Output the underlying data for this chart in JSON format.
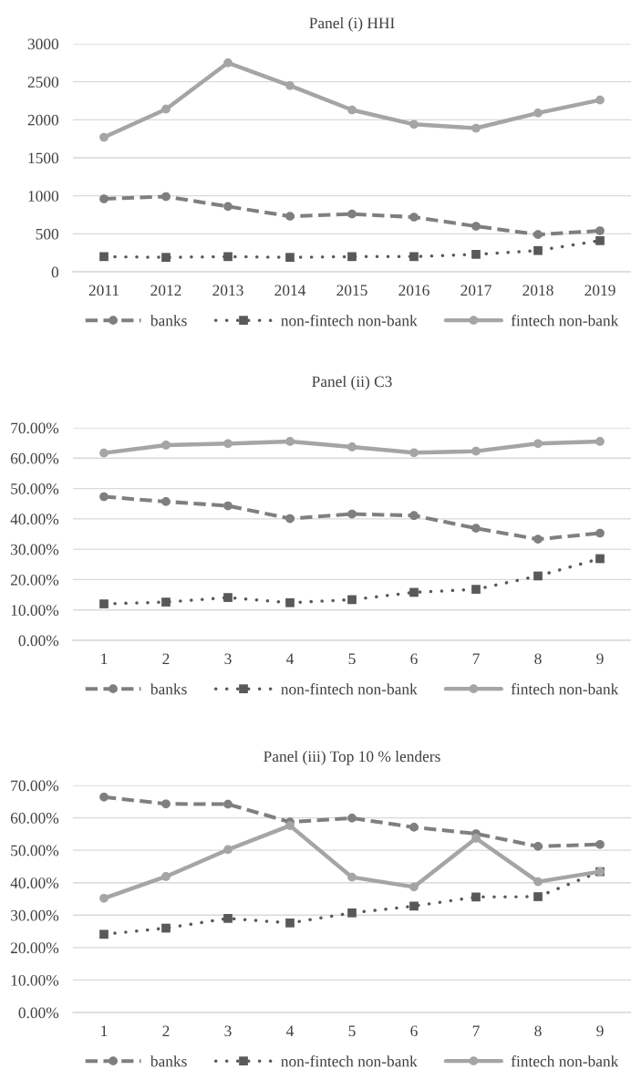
{
  "chart_data": [
    {
      "type": "line",
      "title": "Panel (i) HHI",
      "categories": [
        "2011",
        "2012",
        "2013",
        "2014",
        "2015",
        "2016",
        "2017",
        "2018",
        "2019"
      ],
      "ylim": [
        0,
        3000
      ],
      "yticks": [
        0,
        500,
        1000,
        1500,
        2000,
        2500,
        3000
      ],
      "grid": "y",
      "legend": "bottom",
      "series": [
        {
          "name": "banks",
          "color": "#7f7f7f",
          "marker": "circle",
          "line_style": "dashed",
          "values": [
            960,
            990,
            860,
            730,
            760,
            720,
            600,
            490,
            540
          ]
        },
        {
          "name": "non-fintech non-bank",
          "color": "#595959",
          "marker": "square",
          "line_style": "dotted",
          "values": [
            200,
            190,
            200,
            190,
            200,
            200,
            230,
            280,
            410
          ]
        },
        {
          "name": "fintech non-bank",
          "color": "#a5a5a5",
          "marker": "circle",
          "line_style": "solid",
          "values": [
            1770,
            2140,
            2750,
            2450,
            2130,
            1940,
            1890,
            2090,
            2260
          ]
        }
      ]
    },
    {
      "type": "line",
      "title": "Panel (ii) C3",
      "categories": [
        "1",
        "2",
        "3",
        "4",
        "5",
        "6",
        "7",
        "8",
        "9"
      ],
      "ylim": [
        0,
        70
      ],
      "yticks": [
        {
          "value": 0,
          "label": "0.00%"
        },
        {
          "value": 10,
          "label": "10.00%"
        },
        {
          "value": 20,
          "label": "20.00%"
        },
        {
          "value": 30,
          "label": "30.00%"
        },
        {
          "value": 40,
          "label": "40.00%"
        },
        {
          "value": 50,
          "label": "50.00%"
        },
        {
          "value": 60,
          "label": "60.00%"
        },
        {
          "value": 70,
          "label": "70.00%"
        }
      ],
      "grid": "y",
      "legend": "bottom",
      "series": [
        {
          "name": "banks",
          "color": "#7f7f7f",
          "marker": "circle",
          "line_style": "dashed",
          "values": [
            47.3,
            45.7,
            44.3,
            40.1,
            41.6,
            41.1,
            36.9,
            33.3,
            35.3
          ]
        },
        {
          "name": "non-fintech non-bank",
          "color": "#595959",
          "marker": "square",
          "line_style": "dotted",
          "values": [
            12.0,
            12.6,
            14.1,
            12.4,
            13.4,
            15.8,
            16.8,
            21.2,
            26.9
          ]
        },
        {
          "name": "fintech non-bank",
          "color": "#a5a5a5",
          "marker": "circle",
          "line_style": "solid",
          "values": [
            61.7,
            64.3,
            64.8,
            65.5,
            63.7,
            61.8,
            62.3,
            64.8,
            65.5
          ]
        }
      ]
    },
    {
      "type": "line",
      "title": "Panel (iii) Top 10 % lenders",
      "categories": [
        "1",
        "2",
        "3",
        "4",
        "5",
        "6",
        "7",
        "8",
        "9"
      ],
      "ylim": [
        0,
        70
      ],
      "yticks": [
        {
          "value": 0,
          "label": "0.00%"
        },
        {
          "value": 10,
          "label": "10.00%"
        },
        {
          "value": 20,
          "label": "20.00%"
        },
        {
          "value": 30,
          "label": "30.00%"
        },
        {
          "value": 40,
          "label": "40.00%"
        },
        {
          "value": 50,
          "label": "50.00%"
        },
        {
          "value": 60,
          "label": "60.00%"
        },
        {
          "value": 70,
          "label": "70.00%"
        }
      ],
      "grid": "y",
      "legend": "bottom",
      "series": [
        {
          "name": "banks",
          "color": "#7f7f7f",
          "marker": "circle",
          "line_style": "dashed",
          "values": [
            66.4,
            64.3,
            64.2,
            58.7,
            59.9,
            57.1,
            55.1,
            51.2,
            51.8
          ]
        },
        {
          "name": "non-fintech non-bank",
          "color": "#595959",
          "marker": "square",
          "line_style": "dotted",
          "values": [
            24.1,
            26.0,
            29.0,
            27.6,
            30.7,
            32.8,
            35.6,
            35.7,
            43.4
          ]
        },
        {
          "name": "fintech non-bank",
          "color": "#a5a5a5",
          "marker": "circle",
          "line_style": "solid",
          "values": [
            35.2,
            41.9,
            50.2,
            57.6,
            41.7,
            38.7,
            53.7,
            40.3,
            43.4
          ]
        }
      ]
    }
  ]
}
